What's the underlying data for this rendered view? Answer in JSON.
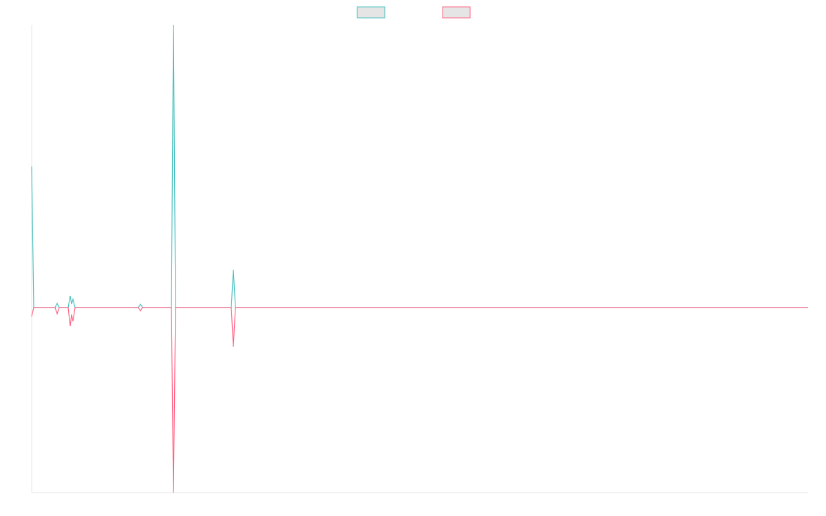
{
  "chart_data": {
    "type": "line",
    "x": [
      0,
      3,
      34,
      37,
      40,
      53,
      56,
      58,
      60,
      63,
      155,
      158,
      161,
      203,
      206,
      209,
      290,
      293,
      296,
      1128
    ],
    "xlim": [
      0,
      1128
    ],
    "ylim": [
      -269,
      411
    ],
    "grid": false,
    "legend": "top",
    "series": [
      {
        "color": "#4bc0c0",
        "values": [
          205,
          0,
          0,
          6,
          0,
          0,
          17,
          5,
          12,
          0,
          0,
          5,
          0,
          0,
          411,
          0,
          0,
          55,
          0,
          0
        ]
      },
      {
        "color": "#ff6384",
        "values": [
          -13,
          0,
          0,
          -9,
          0,
          0,
          -27,
          -10,
          -20,
          0,
          0,
          -5,
          0,
          0,
          -269,
          0,
          0,
          -57,
          0,
          0
        ]
      }
    ]
  }
}
